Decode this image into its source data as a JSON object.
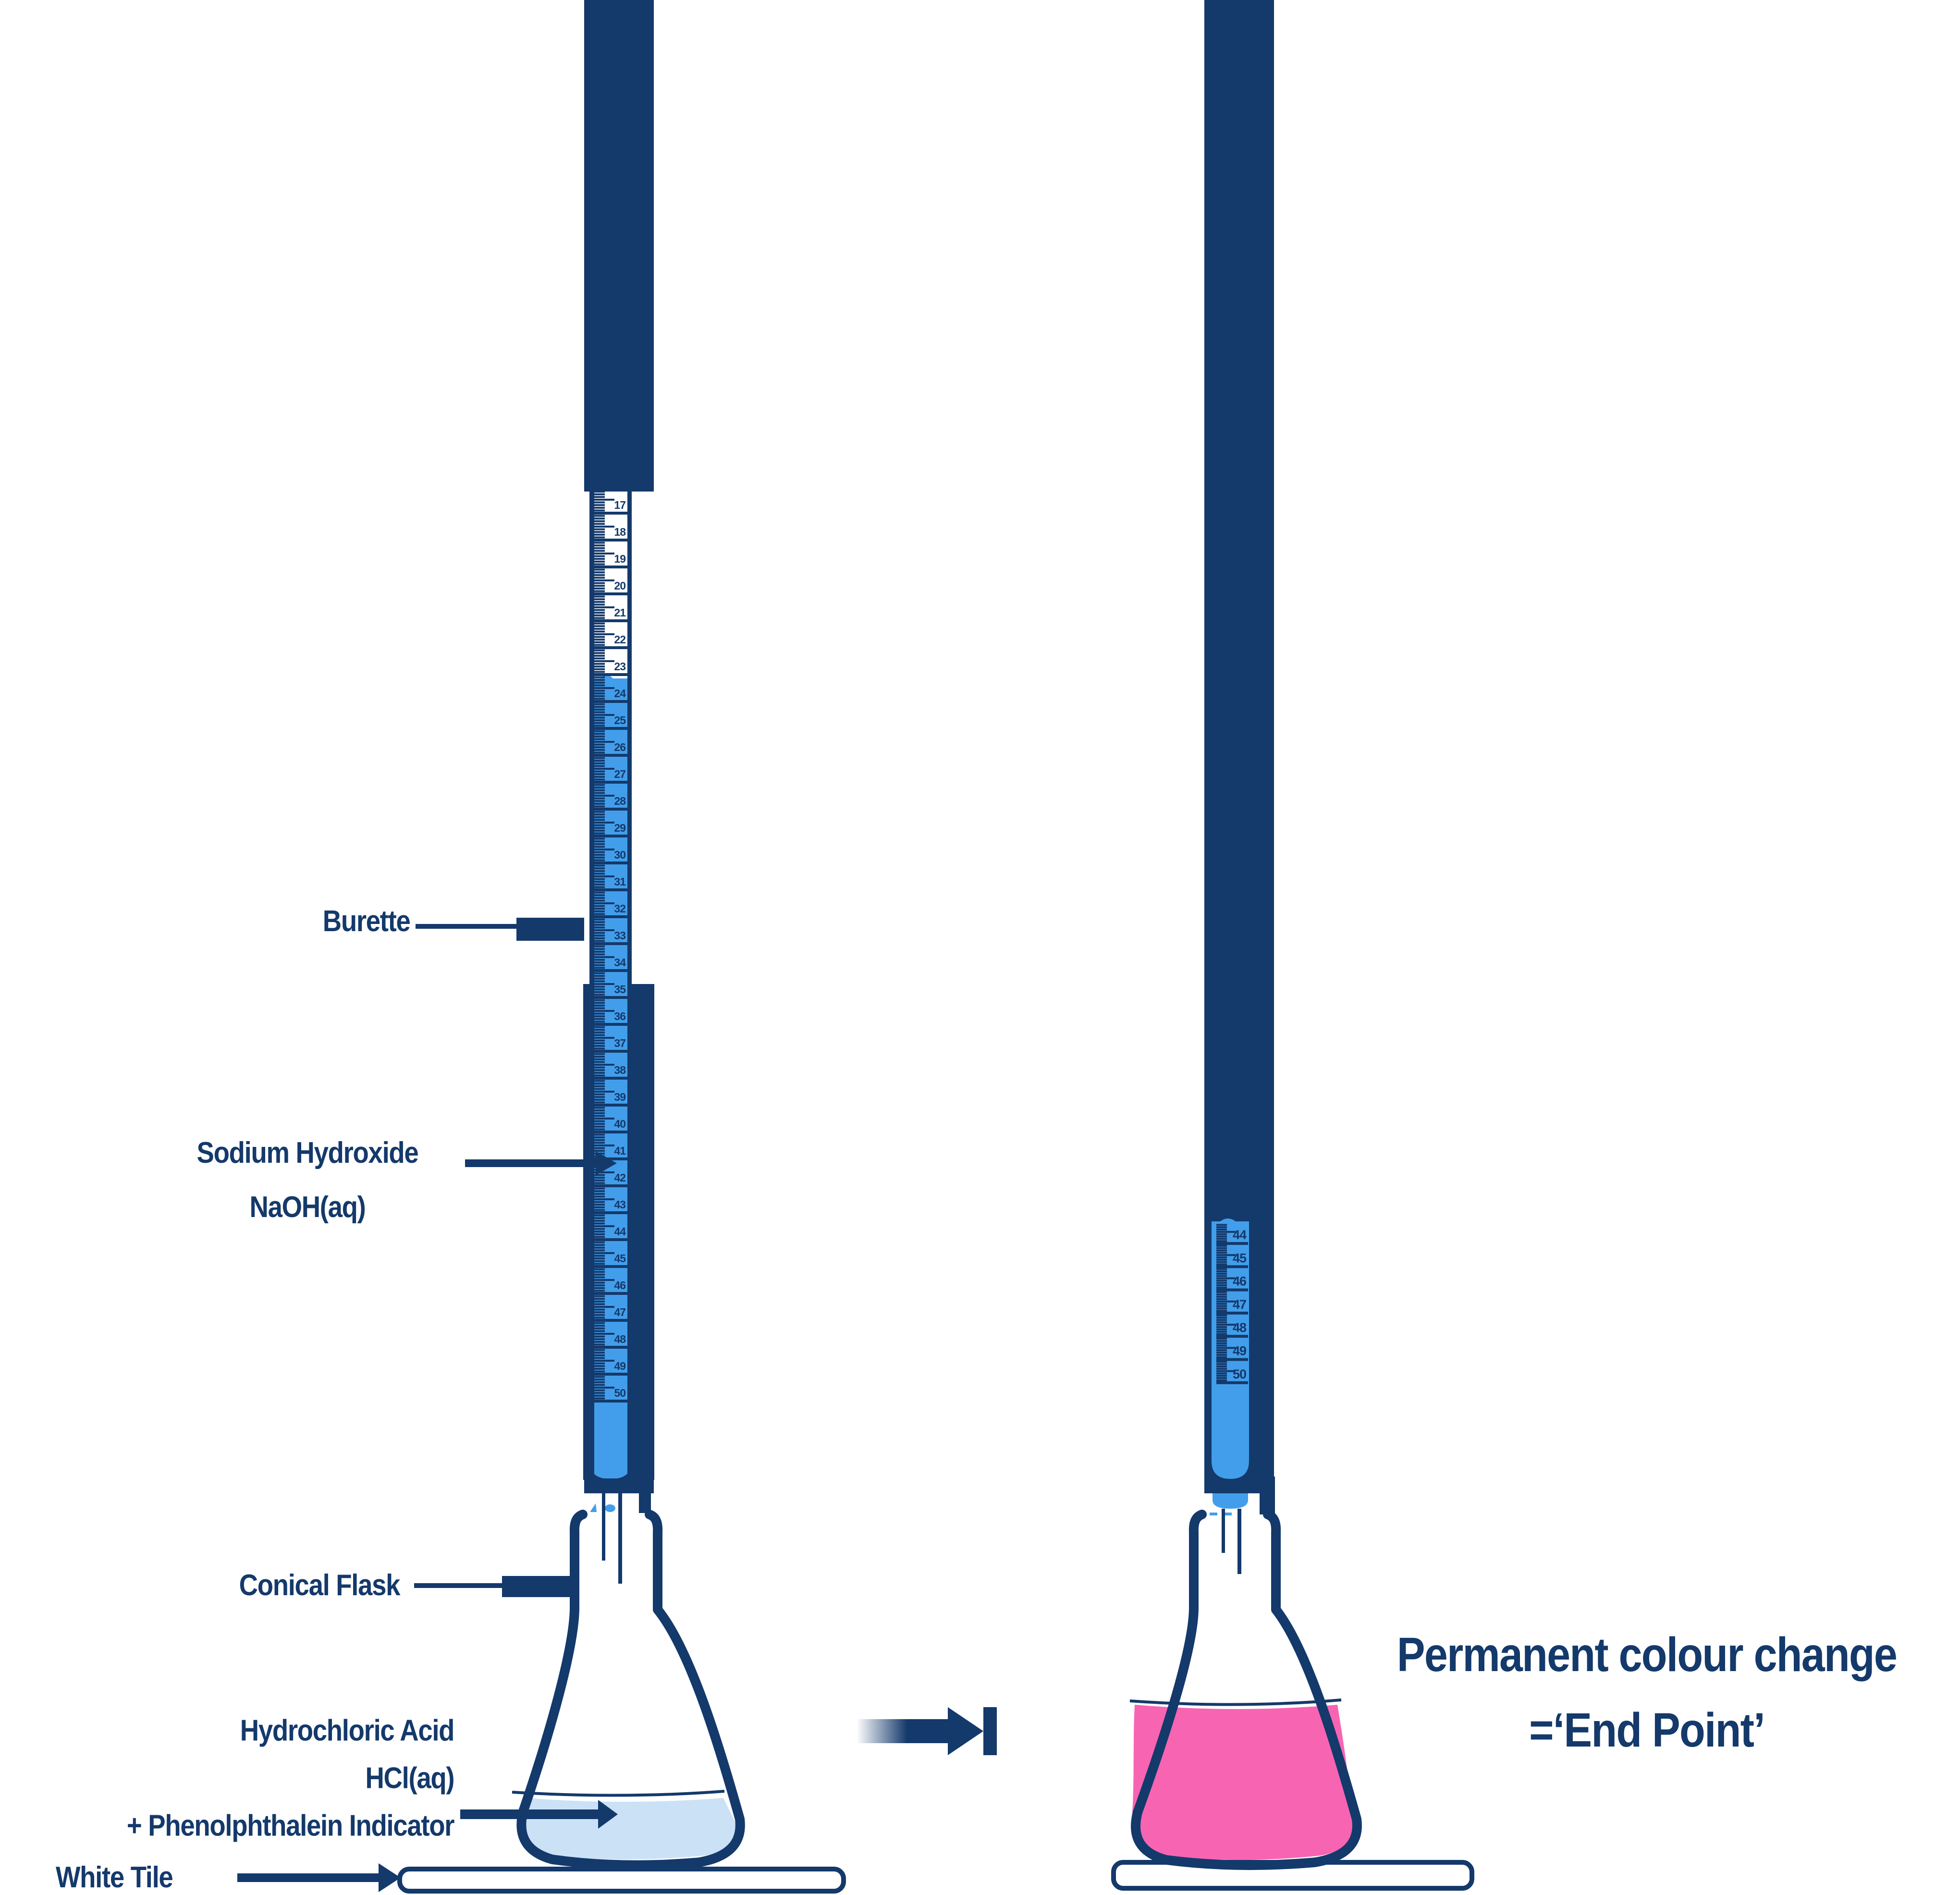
{
  "colors": {
    "navy": "#14396B",
    "burette_liquid": "#429EEA",
    "flask_liquid_left": "#CBE1F6",
    "flask_liquid_right": "#F764B2",
    "background": "#FFFFFF"
  },
  "labels": {
    "burette": "Burette",
    "sodium_hydroxide_line1": "Sodium Hydroxide",
    "sodium_hydroxide_line2": "NaOH(aq)",
    "conical_flask": "Conical Flask",
    "hydrochloric_line1": "Hydrochloric Acid",
    "hydrochloric_line2": "HCl(aq)",
    "hydrochloric_line3": "+ Phenolphthalein Indicator",
    "white_tile": "White Tile",
    "result_line1": "Permanent colour change",
    "result_line2": "=‘End Point’"
  },
  "burette_scales": {
    "left": {
      "tick_labels": [
        17,
        18,
        19,
        20,
        21,
        22,
        23,
        24,
        25,
        26,
        27,
        28,
        29,
        30,
        31,
        32,
        33,
        34,
        35,
        36,
        37,
        38,
        39,
        40,
        41,
        42,
        43,
        44,
        45,
        46,
        47,
        48,
        49,
        50
      ]
    },
    "right": {
      "tick_labels": [
        44,
        45,
        46,
        47,
        48,
        49,
        50
      ]
    }
  }
}
